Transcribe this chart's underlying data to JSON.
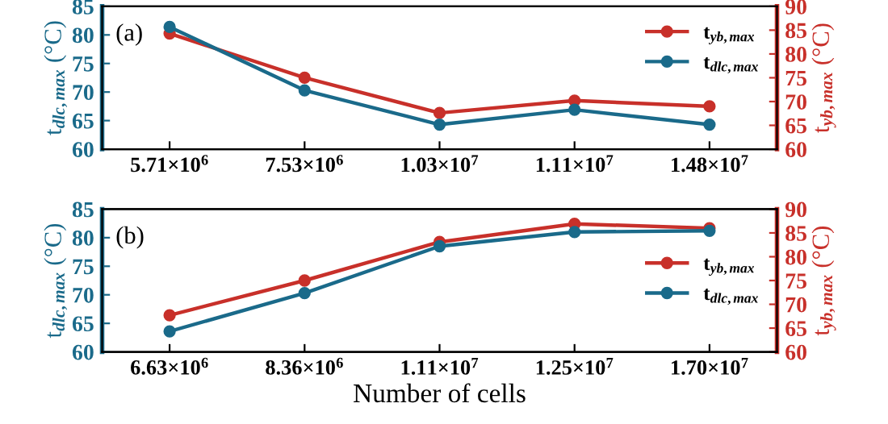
{
  "chart_data": [
    {
      "type": "line",
      "categories": [
        "5.71×10$^{6}$",
        "7.53×10$^{6}$",
        "1.03×10$^{7}$",
        "1.11×10$^{7}$",
        "1.48×10$^{7}$"
      ],
      "ylabel": "t$_{dlc,max}$ (°C)",
      "y2label": "t$_{yb,max}$ (°C)",
      "ylim": [
        60,
        85
      ],
      "yticks": [
        60,
        65,
        70,
        75,
        80,
        85
      ],
      "y2lim": [
        60,
        90
      ],
      "y2ticks": [
        60,
        65,
        70,
        75,
        80,
        85,
        90
      ],
      "marker": "circle",
      "line_style": "solid",
      "grid": false,
      "legend": "top right",
      "annotations": [
        "(a)"
      ],
      "series": [
        {
          "name": "t$_{yb,max}$",
          "color": "#c8302a",
          "axis": "y2",
          "values": [
            84.3,
            75.0,
            67.6,
            70.2,
            69.0
          ]
        },
        {
          "name": "t$_{dlc,max}$",
          "color": "#1a6a8a",
          "values": [
            81.4,
            70.3,
            64.3,
            66.9,
            64.3
          ]
        }
      ]
    },
    {
      "type": "line",
      "categories": [
        "6.63×10$^{6}$",
        "8.36×10$^{6}$",
        "1.11×10$^{7}$",
        "1.25×10$^{7}$",
        "1.70×10$^{7}$"
      ],
      "xlabel": "Number of cells",
      "ylabel": "t$_{dlc,max}$ (°C)",
      "y2label": "t$_{yb,max}$ (°C)",
      "ylim": [
        60,
        85
      ],
      "yticks": [
        60,
        65,
        70,
        75,
        80,
        85
      ],
      "y2lim": [
        60,
        90
      ],
      "y2ticks": [
        60,
        65,
        70,
        75,
        80,
        85,
        90
      ],
      "marker": "circle",
      "line_style": "solid",
      "grid": false,
      "legend": "right",
      "annotations": [
        "(b)"
      ],
      "series": [
        {
          "name": "t$_{yb,max}$",
          "color": "#c8302a",
          "axis": "y2",
          "values": [
            67.7,
            75.0,
            83.1,
            86.9,
            86.0
          ]
        },
        {
          "name": "t$_{dlc,max}$",
          "color": "#1a6a8a",
          "values": [
            63.6,
            70.3,
            78.5,
            81.0,
            81.2
          ]
        }
      ]
    }
  ]
}
